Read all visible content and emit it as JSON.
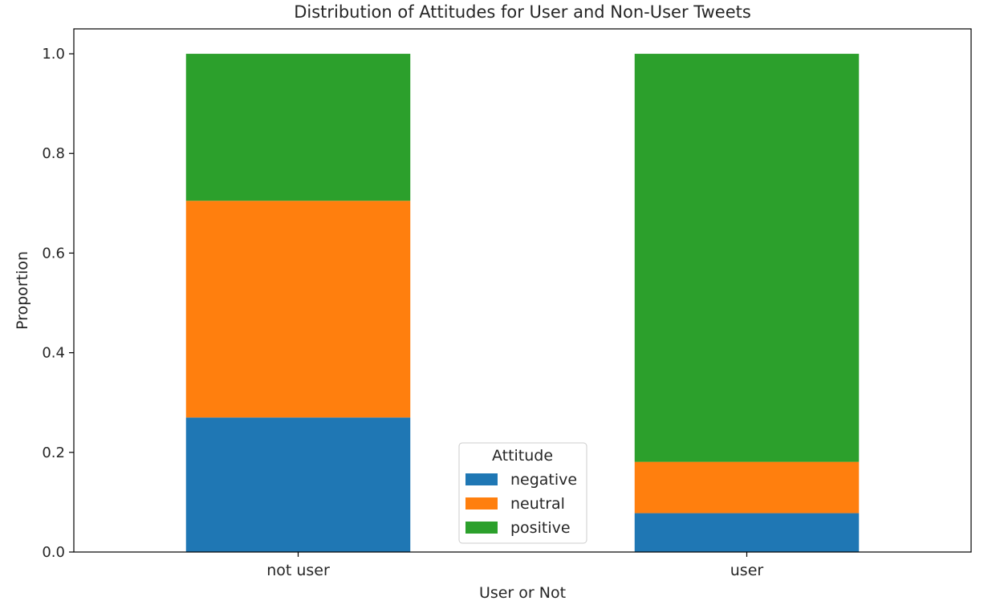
{
  "chart_data": {
    "type": "bar",
    "stacked": true,
    "title": "Distribution of Attitudes for User and Non-User Tweets",
    "xlabel": "User or Not",
    "ylabel": "Proportion",
    "categories": [
      "not user",
      "user"
    ],
    "ylim": [
      0,
      1.05
    ],
    "yticks": [
      "0.0",
      "0.2",
      "0.4",
      "0.6",
      "0.8",
      "1.0"
    ],
    "grid": false,
    "legend": {
      "title": "Attitude",
      "placement": "lower-center"
    },
    "series": [
      {
        "name": "negative",
        "color": "#1f77b4",
        "values": [
          0.27,
          0.078
        ]
      },
      {
        "name": "neutral",
        "color": "#ff7f0e",
        "values": [
          0.435,
          0.103
        ]
      },
      {
        "name": "positive",
        "color": "#2ca02c",
        "values": [
          0.295,
          0.819
        ]
      }
    ]
  }
}
